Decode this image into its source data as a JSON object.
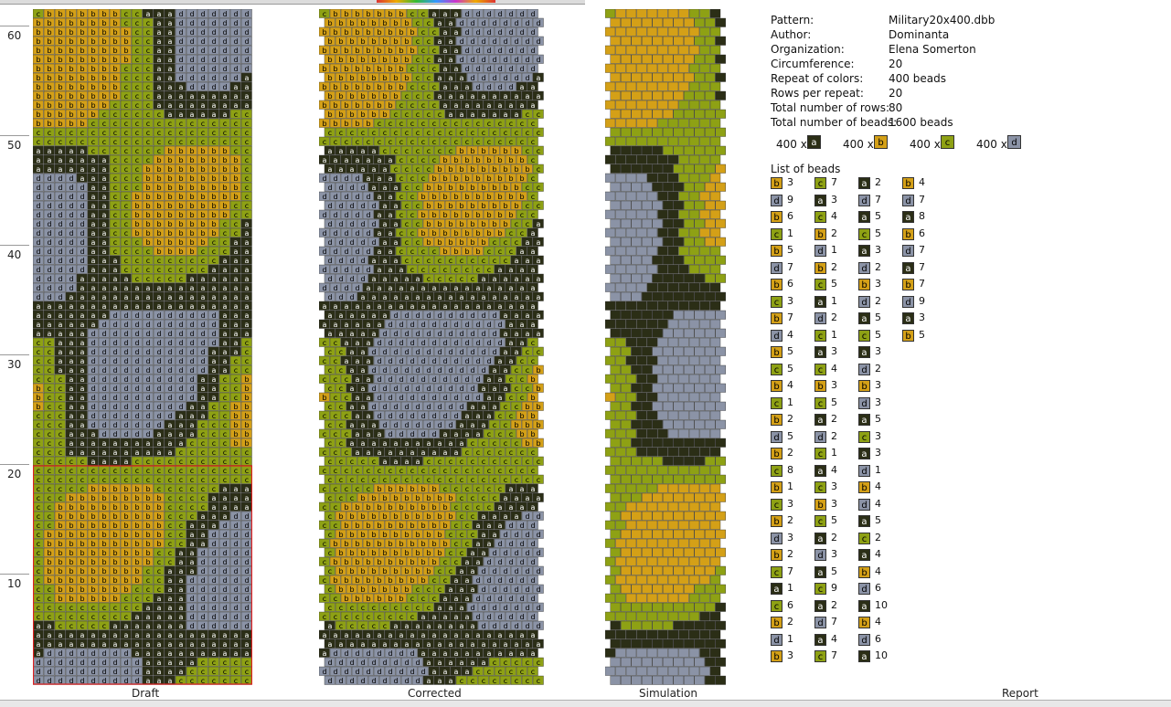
{
  "colors": {
    "a": "#2b2e16",
    "b": "#d4a017",
    "c": "#8ea114",
    "d": "#8b93a6"
  },
  "text_colors": {
    "a": "#ffffff",
    "b": "#000000",
    "c": "#000000",
    "d": "#000000"
  },
  "panels": {
    "draft": "Draft",
    "corrected": "Corrected",
    "simulation": "Simulation",
    "report": "Report"
  },
  "row_numbers": [
    "60",
    "50",
    "40",
    "30",
    "20",
    "10"
  ],
  "report": {
    "pattern_label": "Pattern:",
    "pattern": "Military20x400.dbb",
    "author_label": "Author:",
    "author": "Dominanta",
    "organization_label": "Organization:",
    "organization": "Elena Somerton",
    "circumference_label": "Circumference:",
    "circumference": "20",
    "repeat_label": "Repeat of colors:",
    "repeat": "400 beads",
    "rows_per_repeat_label": "Rows per repeat:",
    "rows_per_repeat": "20",
    "total_rows_label": "Total number of rows:",
    "total_rows": "80",
    "total_beads_label": "Total number of beads:",
    "total_beads": "1600 beads",
    "summary": [
      {
        "count": "400 x",
        "color": "a"
      },
      {
        "count": "400 x",
        "color": "b"
      },
      {
        "count": "400 x",
        "color": "c"
      },
      {
        "count": "400 x",
        "color": "d"
      }
    ],
    "list_label": "List of beads",
    "list_columns": [
      [
        [
          "b",
          "3"
        ],
        [
          "d",
          "9"
        ],
        [
          "b",
          "6"
        ],
        [
          "c",
          "1"
        ],
        [
          "b",
          "5"
        ],
        [
          "d",
          "7"
        ],
        [
          "b",
          "6"
        ],
        [
          "c",
          "3"
        ],
        [
          "b",
          "7"
        ],
        [
          "d",
          "4"
        ],
        [
          "b",
          "5"
        ],
        [
          "c",
          "5"
        ],
        [
          "b",
          "4"
        ],
        [
          "c",
          "1"
        ],
        [
          "b",
          "2"
        ],
        [
          "d",
          "5"
        ],
        [
          "b",
          "2"
        ],
        [
          "c",
          "8"
        ],
        [
          "b",
          "1"
        ],
        [
          "c",
          "3"
        ],
        [
          "b",
          "2"
        ],
        [
          "d",
          "3"
        ],
        [
          "b",
          "2"
        ],
        [
          "c",
          "7"
        ],
        [
          "a",
          "1"
        ],
        [
          "c",
          "6"
        ],
        [
          "b",
          "2"
        ],
        [
          "d",
          "1"
        ],
        [
          "b",
          "3"
        ]
      ],
      [
        [
          "c",
          "7"
        ],
        [
          "a",
          "3"
        ],
        [
          "c",
          "4"
        ],
        [
          "b",
          "2"
        ],
        [
          "d",
          "1"
        ],
        [
          "b",
          "2"
        ],
        [
          "c",
          "5"
        ],
        [
          "a",
          "1"
        ],
        [
          "d",
          "2"
        ],
        [
          "c",
          "1"
        ],
        [
          "a",
          "3"
        ],
        [
          "c",
          "4"
        ],
        [
          "b",
          "3"
        ],
        [
          "c",
          "5"
        ],
        [
          "a",
          "2"
        ],
        [
          "d",
          "2"
        ],
        [
          "c",
          "1"
        ],
        [
          "a",
          "4"
        ],
        [
          "c",
          "3"
        ],
        [
          "b",
          "3"
        ],
        [
          "c",
          "5"
        ],
        [
          "a",
          "2"
        ],
        [
          "d",
          "3"
        ],
        [
          "a",
          "5"
        ],
        [
          "c",
          "9"
        ],
        [
          "a",
          "2"
        ],
        [
          "d",
          "7"
        ],
        [
          "a",
          "4"
        ],
        [
          "c",
          "7"
        ]
      ],
      [
        [
          "a",
          "2"
        ],
        [
          "d",
          "7"
        ],
        [
          "a",
          "5"
        ],
        [
          "c",
          "5"
        ],
        [
          "a",
          "3"
        ],
        [
          "d",
          "2"
        ],
        [
          "b",
          "3"
        ],
        [
          "d",
          "2"
        ],
        [
          "a",
          "5"
        ],
        [
          "c",
          "5"
        ],
        [
          "a",
          "3"
        ],
        [
          "d",
          "2"
        ],
        [
          "b",
          "3"
        ],
        [
          "d",
          "3"
        ],
        [
          "a",
          "5"
        ],
        [
          "c",
          "3"
        ],
        [
          "a",
          "3"
        ],
        [
          "d",
          "1"
        ],
        [
          "b",
          "4"
        ],
        [
          "d",
          "4"
        ],
        [
          "a",
          "5"
        ],
        [
          "c",
          "2"
        ],
        [
          "a",
          "4"
        ],
        [
          "b",
          "4"
        ],
        [
          "d",
          "6"
        ],
        [
          "a",
          "10"
        ],
        [
          "b",
          "4"
        ],
        [
          "d",
          "6"
        ],
        [
          "a",
          "10"
        ]
      ],
      [
        [
          "b",
          "4"
        ],
        [
          "d",
          "7"
        ],
        [
          "a",
          "8"
        ],
        [
          "b",
          "6"
        ],
        [
          "d",
          "7"
        ],
        [
          "a",
          "7"
        ],
        [
          "b",
          "7"
        ],
        [
          "d",
          "9"
        ],
        [
          "a",
          "3"
        ],
        [
          "b",
          "5"
        ]
      ]
    ]
  }
}
